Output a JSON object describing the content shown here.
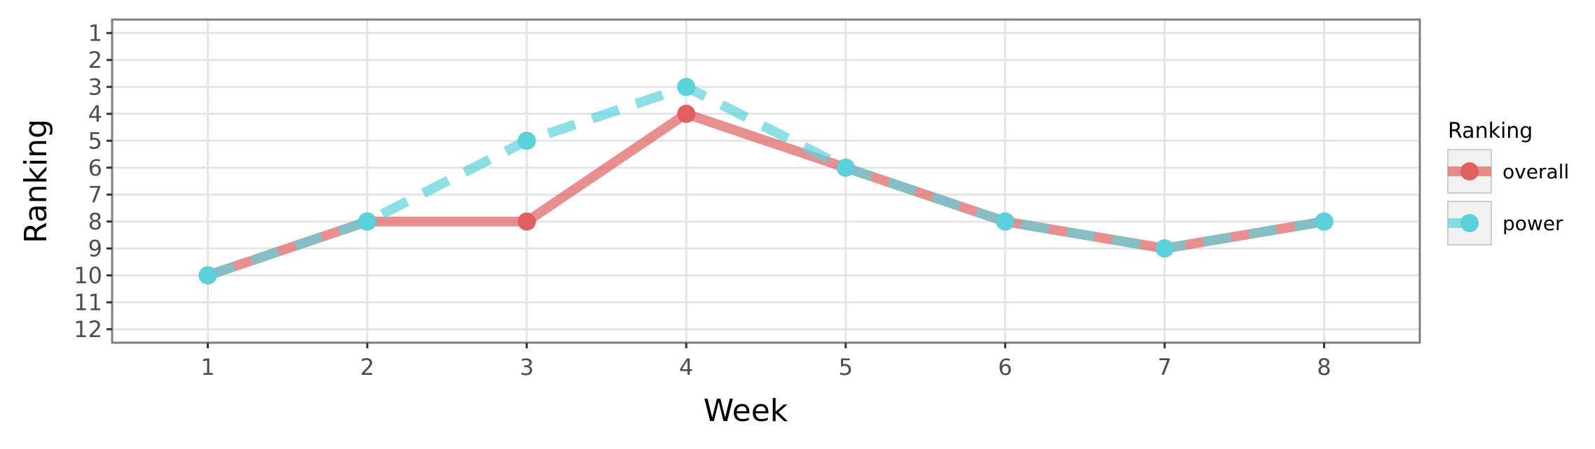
{
  "chart_data": {
    "type": "line",
    "title": "",
    "xlabel": "Week",
    "ylabel": "Ranking",
    "x": [
      1,
      2,
      3,
      4,
      5,
      6,
      7,
      8
    ],
    "x_ticks": [
      "1",
      "2",
      "3",
      "4",
      "5",
      "6",
      "7",
      "8"
    ],
    "xlim": [
      0.4,
      8.6
    ],
    "y_ticks": [
      "1",
      "2",
      "3",
      "4",
      "5",
      "6",
      "7",
      "8",
      "9",
      "10",
      "11",
      "12"
    ],
    "ylim": [
      12.5,
      0.5
    ],
    "y_reversed": true,
    "grid": true,
    "legend": {
      "title": "Ranking",
      "position": "right"
    },
    "series": [
      {
        "name": "overall",
        "values": [
          10,
          8,
          8,
          4,
          6,
          8,
          9,
          8
        ],
        "color": "#e06060",
        "line_style": "solid"
      },
      {
        "name": "power",
        "values": [
          10,
          8,
          5,
          3,
          6,
          8,
          9,
          8
        ],
        "color": "#5bd1d9",
        "line_style": "dashed"
      }
    ]
  }
}
